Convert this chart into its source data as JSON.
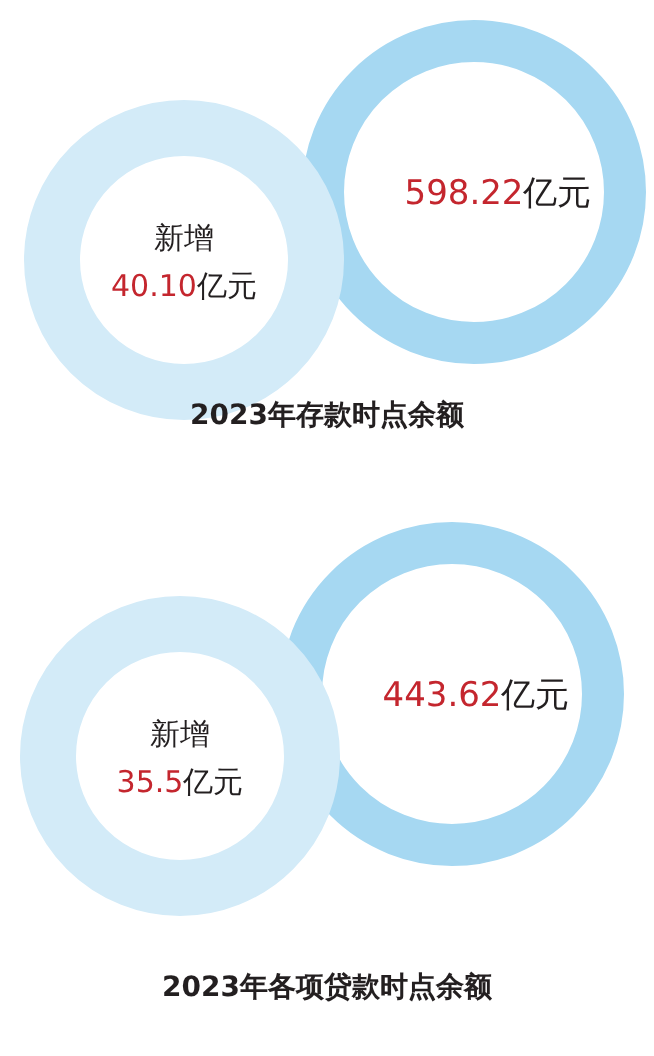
{
  "chart_data": [
    {
      "type": "other",
      "title": "2023年存款时点余额",
      "categories": [
        null,
        "新增"
      ],
      "values": [
        598.22,
        40.1
      ],
      "value_labels": [
        "598.22亿元",
        "40.10亿元"
      ],
      "colors": [
        "#a6d8f2",
        "#d3ebf8"
      ]
    },
    {
      "type": "other",
      "title": "2023年各项贷款时点余额",
      "categories": [
        null,
        "新增"
      ],
      "values": [
        443.62,
        35.5
      ],
      "value_labels": [
        "443.62亿元",
        "35.5亿元"
      ],
      "colors": [
        "#a6d8f2",
        "#d3ebf8"
      ]
    }
  ]
}
